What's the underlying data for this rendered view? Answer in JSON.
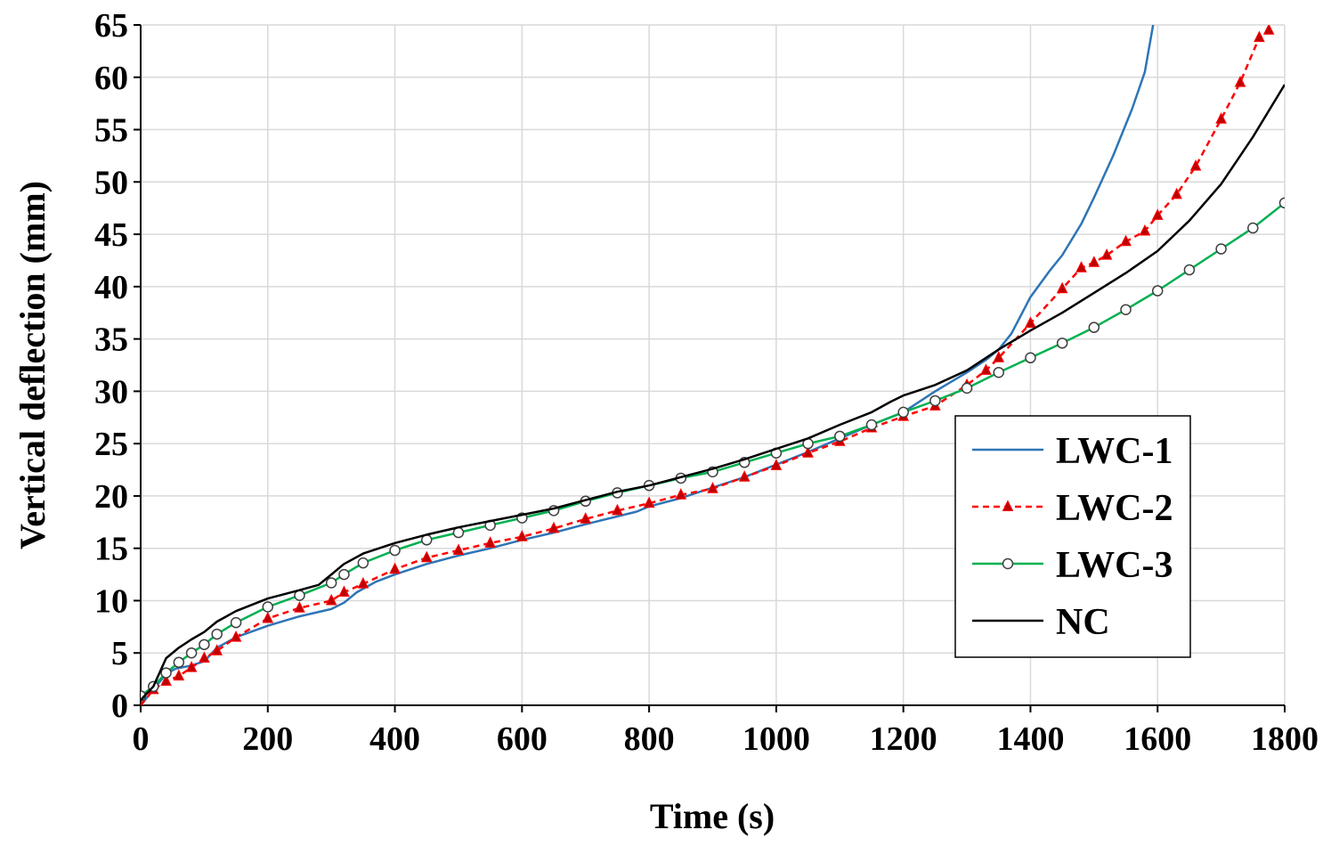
{
  "chart_data": {
    "type": "line",
    "title": "",
    "xlabel": "Time (s)",
    "ylabel": "Vertical deflection (mm)",
    "xlim": [
      0,
      1800
    ],
    "ylim": [
      0,
      65
    ],
    "xticks": [
      0,
      200,
      400,
      600,
      800,
      1000,
      1200,
      1400,
      1600,
      1800
    ],
    "yticks": [
      0,
      5,
      10,
      15,
      20,
      25,
      30,
      35,
      40,
      45,
      50,
      55,
      60,
      65
    ],
    "grid": true,
    "legend_position": "right",
    "series": [
      {
        "name": "LWC-1",
        "color": "#2e75b6",
        "dash": "solid",
        "marker": "none",
        "x": [
          0,
          20,
          40,
          55,
          80,
          100,
          120,
          150,
          200,
          250,
          300,
          320,
          340,
          370,
          400,
          450,
          500,
          550,
          600,
          650,
          700,
          780,
          800,
          850,
          900,
          950,
          1000,
          1050,
          1100,
          1150,
          1200,
          1250,
          1300,
          1330,
          1350,
          1370,
          1400,
          1430,
          1450,
          1480,
          1500,
          1530,
          1560,
          1580,
          1593
        ],
        "y": [
          0,
          1.5,
          3,
          3.5,
          3.8,
          4.2,
          5.5,
          6.5,
          7.6,
          8.5,
          9.2,
          9.8,
          10.8,
          11.8,
          12.5,
          13.5,
          14.3,
          15,
          15.8,
          16.5,
          17.3,
          18.5,
          19,
          19.8,
          20.8,
          21.8,
          23,
          24.2,
          25.5,
          26.8,
          28,
          30,
          31.8,
          33,
          34,
          35.5,
          39,
          41.5,
          43,
          46,
          48.5,
          52.5,
          57,
          60.5,
          65
        ]
      },
      {
        "name": "LWC-2",
        "color": "#ff0000",
        "marker_fill": "#c00000",
        "dash": "dashed",
        "marker": "triangle",
        "x": [
          0,
          20,
          40,
          60,
          80,
          100,
          120,
          150,
          200,
          250,
          300,
          320,
          350,
          400,
          450,
          500,
          550,
          600,
          650,
          700,
          750,
          800,
          850,
          900,
          950,
          1000,
          1050,
          1100,
          1150,
          1200,
          1250,
          1300,
          1330,
          1350,
          1400,
          1450,
          1480,
          1500,
          1520,
          1550,
          1580,
          1600,
          1630,
          1660,
          1700,
          1730,
          1760,
          1775
        ],
        "y": [
          0,
          1.5,
          2.3,
          2.8,
          3.6,
          4.5,
          5.2,
          6.5,
          8.3,
          9.3,
          10,
          10.8,
          11.6,
          13,
          14.1,
          14.8,
          15.5,
          16.1,
          16.9,
          17.8,
          18.6,
          19.3,
          20.1,
          20.7,
          21.8,
          22.9,
          24.1,
          25.2,
          26.5,
          27.6,
          28.6,
          30.6,
          32,
          33.2,
          36.5,
          39.8,
          41.8,
          42.3,
          43,
          44.3,
          45.3,
          46.8,
          48.8,
          51.5,
          56,
          59.5,
          63.8,
          64.5
        ]
      },
      {
        "name": "LWC-3",
        "color": "#00b050",
        "dash": "solid",
        "marker": "circle",
        "x": [
          0,
          20,
          40,
          60,
          80,
          100,
          120,
          150,
          200,
          250,
          300,
          320,
          350,
          400,
          450,
          500,
          550,
          600,
          650,
          700,
          750,
          800,
          850,
          900,
          950,
          1000,
          1050,
          1100,
          1150,
          1200,
          1250,
          1300,
          1350,
          1400,
          1450,
          1500,
          1550,
          1600,
          1650,
          1700,
          1750,
          1800
        ],
        "y": [
          0.9,
          1.8,
          3.1,
          4.1,
          5,
          5.8,
          6.8,
          7.9,
          9.4,
          10.5,
          11.7,
          12.5,
          13.6,
          14.8,
          15.8,
          16.5,
          17.2,
          17.9,
          18.6,
          19.5,
          20.3,
          21,
          21.7,
          22.3,
          23.2,
          24.1,
          25,
          25.7,
          26.8,
          28,
          29.1,
          30.3,
          31.8,
          33.2,
          34.6,
          36.1,
          37.8,
          39.6,
          41.6,
          43.6,
          45.6,
          48
        ]
      },
      {
        "name": "NC",
        "color": "#000000",
        "dash": "solid",
        "marker": "none",
        "x": [
          0,
          20,
          40,
          60,
          80,
          100,
          120,
          150,
          200,
          250,
          280,
          300,
          320,
          350,
          400,
          450,
          500,
          550,
          600,
          650,
          700,
          750,
          800,
          850,
          900,
          950,
          1000,
          1050,
          1100,
          1150,
          1180,
          1200,
          1250,
          1300,
          1350,
          1400,
          1450,
          1500,
          1550,
          1600,
          1650,
          1700,
          1750,
          1800
        ],
        "y": [
          0.5,
          1.8,
          4.5,
          5.5,
          6.3,
          7,
          8,
          9,
          10.2,
          11,
          11.5,
          12.5,
          13.5,
          14.5,
          15.5,
          16.3,
          17,
          17.6,
          18.2,
          18.8,
          19.6,
          20.4,
          21,
          21.8,
          22.6,
          23.5,
          24.5,
          25.5,
          26.8,
          28,
          29,
          29.6,
          30.6,
          32,
          34,
          35.8,
          37.5,
          39.4,
          41.3,
          43.4,
          46.3,
          49.8,
          54.3,
          59.3
        ]
      }
    ]
  }
}
